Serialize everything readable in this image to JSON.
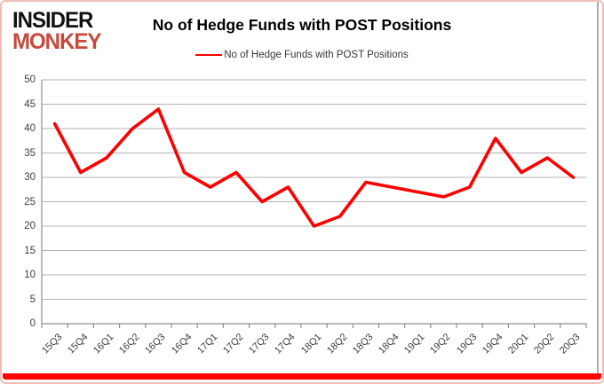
{
  "brand": {
    "line1": "INSIDER",
    "line2": "MONKEY"
  },
  "header": {
    "title": "No of Hedge Funds with POST Positions"
  },
  "legend": {
    "label": "No of Hedge Funds with POST Positions"
  },
  "chart_data": {
    "type": "line",
    "title": "No of Hedge Funds with POST Positions",
    "categories": [
      "15Q3",
      "15Q4",
      "16Q1",
      "16Q2",
      "16Q3",
      "16Q4",
      "17Q1",
      "17Q2",
      "17Q3",
      "17Q4",
      "18Q1",
      "18Q2",
      "18Q3",
      "18Q4",
      "19Q1",
      "19Q2",
      "19Q3",
      "19Q4",
      "20Q1",
      "20Q2",
      "20Q3"
    ],
    "series": [
      {
        "name": "No of Hedge Funds with POST Positions",
        "color": "#ff0000",
        "values": [
          41,
          31,
          34,
          40,
          44,
          31,
          28,
          31,
          25,
          28,
          20,
          22,
          29,
          28,
          27,
          26,
          28,
          38,
          31,
          34,
          30
        ]
      }
    ],
    "ylim": [
      0,
      50
    ],
    "y_ticks": [
      0,
      5,
      10,
      15,
      20,
      25,
      30,
      35,
      40,
      45,
      50
    ],
    "grid": true,
    "legend_position": "top"
  },
  "colors": {
    "line": "#ff0000",
    "grid": "#b3b3b3",
    "axis": "#8f8f8f",
    "tick_label": "#3d3d3d",
    "logo_black": "#121212",
    "logo_red": "#c8493a",
    "frame_border": "#f2beb8",
    "bottom_bar": "#fb0503"
  }
}
